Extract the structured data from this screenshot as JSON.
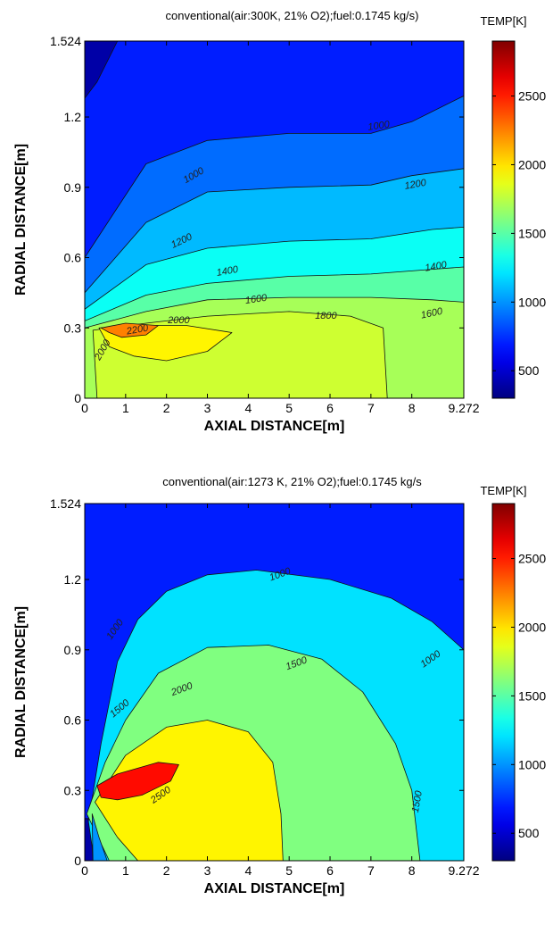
{
  "chart_data": [
    {
      "type": "heatmap",
      "title": "conventional(air:300K, 21% O2);fuel:0.1745 kg/s)",
      "xlabel": "AXIAL DISTANCE[m]",
      "ylabel": "RADIAL DISTANCE[m]",
      "xlim": [
        0,
        9.272
      ],
      "ylim": [
        0,
        1.524
      ],
      "xticks": [
        "0",
        "1",
        "2",
        "3",
        "4",
        "5",
        "6",
        "7",
        "8",
        "9.272"
      ],
      "yticks": [
        "0",
        "0.3",
        "0.6",
        "0.9",
        "1.2",
        "1.524"
      ],
      "colorbar": {
        "title": "TEMP[K]",
        "ticks": [
          "500",
          "1000",
          "1500",
          "2000",
          "2500"
        ],
        "range": [
          300,
          2900
        ]
      },
      "contour_levels": [
        1000,
        1200,
        1400,
        1600,
        1800,
        2000,
        2200
      ],
      "contour_labels": [
        "1000",
        "1000",
        "1200",
        "1200",
        "1400",
        "1400",
        "1600",
        "1600",
        "1800",
        "2000",
        "2200",
        "2000"
      ],
      "regions": [
        {
          "temp": 700,
          "boundary": [
            [
              0,
              1.524
            ],
            [
              9.272,
              1.524
            ],
            [
              9.272,
              0
            ],
            [
              0,
              0
            ]
          ]
        },
        {
          "temp": 900,
          "boundary": [
            [
              0,
              0.6
            ],
            [
              1.5,
              1.0
            ],
            [
              3,
              1.1
            ],
            [
              5,
              1.13
            ],
            [
              7,
              1.13
            ],
            [
              8,
              1.18
            ],
            [
              9.272,
              1.29
            ],
            [
              9.272,
              0
            ],
            [
              0,
              0
            ]
          ]
        },
        {
          "temp": 1100,
          "boundary": [
            [
              0,
              0.45
            ],
            [
              1.5,
              0.75
            ],
            [
              3,
              0.88
            ],
            [
              5,
              0.9
            ],
            [
              7,
              0.91
            ],
            [
              8,
              0.95
            ],
            [
              9.272,
              0.98
            ],
            [
              9.272,
              0
            ],
            [
              0,
              0
            ]
          ]
        },
        {
          "temp": 1300,
          "boundary": [
            [
              0,
              0.38
            ],
            [
              1.5,
              0.57
            ],
            [
              3,
              0.64
            ],
            [
              5,
              0.67
            ],
            [
              7,
              0.68
            ],
            [
              8.5,
              0.72
            ],
            [
              9.272,
              0.73
            ],
            [
              9.272,
              0
            ],
            [
              0,
              0
            ]
          ]
        },
        {
          "temp": 1500,
          "boundary": [
            [
              0,
              0.33
            ],
            [
              1.5,
              0.44
            ],
            [
              3,
              0.49
            ],
            [
              5,
              0.52
            ],
            [
              7,
              0.53
            ],
            [
              8.5,
              0.55
            ],
            [
              9.272,
              0.56
            ],
            [
              9.272,
              0
            ],
            [
              0,
              0
            ]
          ]
        },
        {
          "temp": 1700,
          "boundary": [
            [
              0,
              0.3
            ],
            [
              1.5,
              0.37
            ],
            [
              3,
              0.42
            ],
            [
              5,
              0.43
            ],
            [
              7,
              0.43
            ],
            [
              8.5,
              0.42
            ],
            [
              9.272,
              0.41
            ],
            [
              9.272,
              0
            ],
            [
              0,
              0
            ]
          ]
        },
        {
          "temp": 1800,
          "boundary": [
            [
              0.2,
              0.29
            ],
            [
              1.5,
              0.32
            ],
            [
              3,
              0.35
            ],
            [
              5,
              0.37
            ],
            [
              6.5,
              0.35
            ],
            [
              7.3,
              0.3
            ],
            [
              7.4,
              0
            ],
            [
              0.3,
              0
            ]
          ]
        },
        {
          "temp": 1950,
          "boundary": [
            [
              0.35,
              0.3
            ],
            [
              1.5,
              0.31
            ],
            [
              2.5,
              0.31
            ],
            [
              3.6,
              0.28
            ],
            [
              3,
              0.2
            ],
            [
              2,
              0.16
            ],
            [
              1.2,
              0.18
            ],
            [
              0.6,
              0.22
            ]
          ]
        },
        {
          "temp": 2250,
          "boundary": [
            [
              0.4,
              0.3
            ],
            [
              1,
              0.32
            ],
            [
              1.8,
              0.31
            ],
            [
              1.5,
              0.27
            ],
            [
              0.9,
              0.26
            ],
            [
              0.6,
              0.28
            ]
          ]
        },
        {
          "temp": 400,
          "boundary": [
            [
              0,
              1.28
            ],
            [
              0.3,
              1.35
            ],
            [
              0.8,
              1.524
            ],
            [
              0,
              1.524
            ]
          ]
        }
      ]
    },
    {
      "type": "heatmap",
      "title": "conventional(air:1273 K, 21% O2);fuel:0.1745 kg/s",
      "xlabel": "AXIAL DISTANCE[m]",
      "ylabel": "RADIAL DISTANCE[m]",
      "xlim": [
        0,
        9.272
      ],
      "ylim": [
        0,
        1.524
      ],
      "xticks": [
        "0",
        "1",
        "2",
        "3",
        "4",
        "5",
        "6",
        "7",
        "8",
        "9.272"
      ],
      "yticks": [
        "0",
        "0.3",
        "0.6",
        "0.9",
        "1.2",
        "1.524"
      ],
      "colorbar": {
        "title": "TEMP[K]",
        "ticks": [
          "500",
          "1000",
          "1500",
          "2000",
          "2500"
        ],
        "range": [
          300,
          2900
        ]
      },
      "contour_levels": [
        1000,
        1500,
        2000,
        2500
      ],
      "contour_labels": [
        "1000",
        "1000",
        "1000",
        "1500",
        "1500",
        "2000",
        "2500",
        "1500"
      ],
      "regions": [
        {
          "temp": 700,
          "boundary": [
            [
              0,
              1.524
            ],
            [
              9.272,
              1.524
            ],
            [
              9.272,
              0
            ],
            [
              0,
              0
            ]
          ]
        },
        {
          "temp": 1200,
          "boundary": [
            [
              0,
              0.07
            ],
            [
              0.4,
              0.5
            ],
            [
              0.8,
              0.85
            ],
            [
              1.3,
              1.03
            ],
            [
              2,
              1.15
            ],
            [
              3,
              1.22
            ],
            [
              4.2,
              1.24
            ],
            [
              6,
              1.2
            ],
            [
              7.5,
              1.12
            ],
            [
              8.5,
              1.02
            ],
            [
              9.272,
              0.9
            ],
            [
              9.272,
              0
            ],
            [
              0,
              0
            ]
          ]
        },
        {
          "temp": 1600,
          "boundary": [
            [
              0.05,
              0.2
            ],
            [
              0.5,
              0.42
            ],
            [
              1,
              0.6
            ],
            [
              1.8,
              0.8
            ],
            [
              3,
              0.91
            ],
            [
              4.5,
              0.92
            ],
            [
              5.8,
              0.86
            ],
            [
              6.8,
              0.72
            ],
            [
              7.6,
              0.5
            ],
            [
              8,
              0.3
            ],
            [
              8.2,
              0
            ],
            [
              0.6,
              0
            ]
          ]
        },
        {
          "temp": 1950,
          "boundary": [
            [
              0.25,
              0.25
            ],
            [
              1,
              0.45
            ],
            [
              2,
              0.57
            ],
            [
              3,
              0.6
            ],
            [
              4,
              0.55
            ],
            [
              4.6,
              0.42
            ],
            [
              4.8,
              0.2
            ],
            [
              4.85,
              0
            ],
            [
              1.3,
              0
            ],
            [
              0.8,
              0.1
            ]
          ]
        },
        {
          "temp": 2550,
          "boundary": [
            [
              0.3,
              0.32
            ],
            [
              0.8,
              0.37
            ],
            [
              1.8,
              0.42
            ],
            [
              2.3,
              0.41
            ],
            [
              2.1,
              0.34
            ],
            [
              1.4,
              0.28
            ],
            [
              0.8,
              0.26
            ],
            [
              0.4,
              0.27
            ]
          ]
        },
        {
          "temp": 400,
          "boundary": [
            [
              0,
              0
            ],
            [
              0.2,
              0
            ],
            [
              0.18,
              0.06
            ],
            [
              0.08,
              0.18
            ],
            [
              0,
              0.18
            ]
          ]
        },
        {
          "temp": 1000,
          "boundary": [
            [
              0.2,
              0
            ],
            [
              0.55,
              0
            ],
            [
              0.35,
              0.1
            ],
            [
              0.18,
              0.2
            ]
          ]
        }
      ]
    }
  ]
}
